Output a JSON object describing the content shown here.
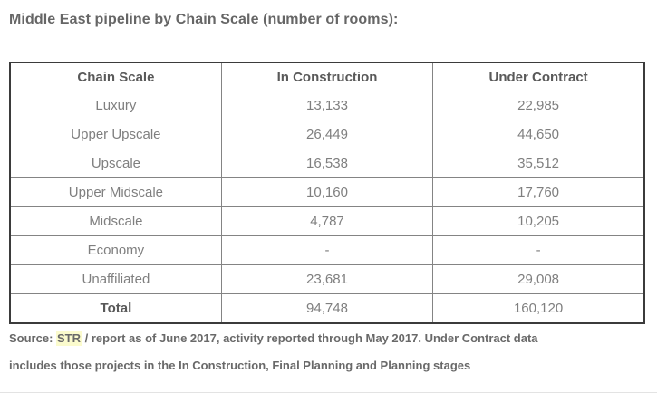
{
  "page": {
    "title": "Middle East pipeline by Chain Scale (number of rooms):"
  },
  "chart_data": {
    "type": "table",
    "title": "Middle East pipeline by Chain Scale (number of rooms):",
    "columns": [
      "Chain Scale",
      "In Construction",
      "Under Contract"
    ],
    "rows": [
      [
        "Luxury",
        "13,133",
        "22,985"
      ],
      [
        "Upper Upscale",
        "26,449",
        "44,650"
      ],
      [
        "Upscale",
        "16,538",
        "35,512"
      ],
      [
        "Upper Midscale",
        "10,160",
        "17,760"
      ],
      [
        "Midscale",
        "4,787",
        "10,205"
      ],
      [
        "Economy",
        "-",
        "-"
      ],
      [
        "Unaffiliated",
        "23,681",
        "29,008"
      ],
      [
        "Total",
        "94,748",
        "160,120"
      ]
    ],
    "layout_hints": {
      "columns_equal_width": true,
      "cell_alignment": "center",
      "total_row_label_bold": true
    }
  },
  "footer": {
    "source_label": "Source: ",
    "source_name": "STR",
    "line1_rest": " / report as of June 2017, activity reported through May 2017. Under Contract data",
    "line2": "includes those projects in the In Construction, Final Planning and Planning stages"
  },
  "colors": {
    "highlight_yellow": "#fbfbcd",
    "title_text": "#666666",
    "header_text": "#595959",
    "cell_text": "#7f7f7f",
    "outer_border": "#3b3b3b",
    "inner_border": "#848484"
  }
}
